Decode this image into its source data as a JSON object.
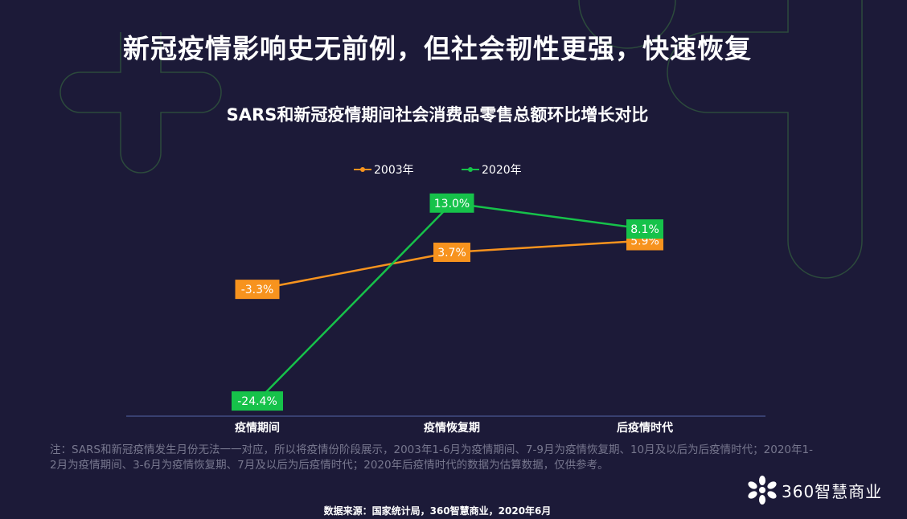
{
  "main_title": "新冠疫情影响史无前例，但社会韧性更强，快速恢复",
  "note": "注：SARS和新冠疫情发生月份无法一一对应，所以将疫情份阶段展示，2003年1-6月为疫情期间、7-9月为疫情恢复期、10月及以后为后疫情时代；2020年1-2月为疫情期间、3-6月为疫情恢复期、7月及以后为后疫情时代；2020年后疫情时代的数据为估算数据，仅供参考。",
  "source": "数据来源：国家统计局，360智慧商业，2020年6月",
  "logo": {
    "text": "360智慧商业",
    "icon": "flower-logo-icon"
  },
  "chart_data": {
    "type": "line",
    "title": "SARS和新冠疫情期间社会消费品零售总额环比增长对比",
    "categories": [
      "疫情期间",
      "疫情恢复期",
      "后疫情时代"
    ],
    "series": [
      {
        "name": "2003年",
        "values": [
          -3.3,
          3.7,
          5.9
        ],
        "labels": [
          "-3.3%",
          "3.7%",
          "5.9%"
        ],
        "color": "#f7931e"
      },
      {
        "name": "2020年",
        "values": [
          -24.4,
          13.0,
          8.1
        ],
        "labels": [
          "-24.4%",
          "13.0%",
          "8.1%"
        ],
        "color": "#16c24a"
      }
    ],
    "ylim": [
      -30,
      16
    ],
    "grid": false,
    "legend_position": "top-center"
  }
}
